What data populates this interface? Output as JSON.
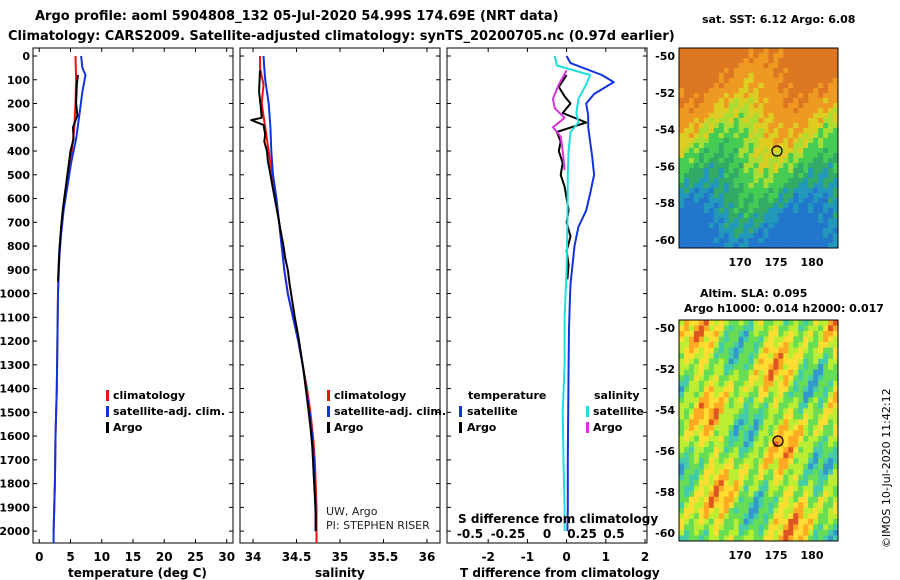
{
  "header": {
    "title_line1": "Argo profile: aoml 5904808_132 05-Jul-2020 54.99S 174.69E (NRT data)",
    "title_line2": "Climatology: CARS2009. Satellite-adjusted climatology: synTS_20200705.nc (0.97d earlier)"
  },
  "colors": {
    "climatology": "#ee1111",
    "satellite": "#1133dd",
    "argo": "#000000",
    "salinity_diff_sat": "#22dddd",
    "salinity_diff_argo": "#dd33dd"
  },
  "depth_axis": {
    "ticks": [
      0,
      100,
      200,
      300,
      400,
      500,
      600,
      700,
      800,
      900,
      1000,
      1100,
      1200,
      1300,
      1400,
      1500,
      1600,
      1700,
      1800,
      1900,
      2000
    ],
    "range": [
      0,
      2050
    ],
    "inverted": true
  },
  "credits": {
    "line1": "UW, Argo",
    "line2": "PI: STEPHEN RISER",
    "imos": "©IMOS 10-Jul-2020 11:42:12"
  },
  "chart_data": [
    {
      "id": "temperature",
      "type": "line",
      "xlabel": "temperature (deg C)",
      "xlim": [
        -1,
        31
      ],
      "xticks": [
        0,
        5,
        10,
        15,
        20,
        25,
        30
      ],
      "legend": [
        "climatology",
        "satellite-adj. clim.",
        "Argo"
      ],
      "series": [
        {
          "name": "climatology",
          "color": "#ee1111",
          "points": [
            [
              5.8,
              0
            ],
            [
              5.9,
              100
            ],
            [
              5.8,
              200
            ],
            [
              5.6,
              300
            ],
            [
              5.2,
              400
            ],
            [
              4.6,
              500
            ],
            [
              4.0,
              600
            ],
            [
              3.6,
              700
            ],
            [
              3.3,
              800
            ],
            [
              3.1,
              900
            ],
            [
              3.0,
              1000
            ],
            [
              2.9,
              1200
            ],
            [
              2.8,
              1400
            ],
            [
              2.6,
              1600
            ],
            [
              2.5,
              1800
            ],
            [
              2.3,
              2000
            ]
          ]
        },
        {
          "name": "satellite-adj. clim.",
          "color": "#1133dd",
          "points": [
            [
              6.7,
              0
            ],
            [
              6.9,
              50
            ],
            [
              7.4,
              80
            ],
            [
              6.9,
              150
            ],
            [
              6.4,
              250
            ],
            [
              5.9,
              350
            ],
            [
              5.1,
              450
            ],
            [
              4.5,
              550
            ],
            [
              3.9,
              650
            ],
            [
              3.5,
              750
            ],
            [
              3.2,
              850
            ],
            [
              3.0,
              1000
            ],
            [
              2.9,
              1200
            ],
            [
              2.8,
              1400
            ],
            [
              2.6,
              1600
            ],
            [
              2.5,
              1800
            ],
            [
              2.3,
              2000
            ],
            [
              2.3,
              2050
            ]
          ]
        },
        {
          "name": "Argo",
          "color": "#000000",
          "points": [
            [
              6.2,
              80
            ],
            [
              6.0,
              120
            ],
            [
              5.9,
              200
            ],
            [
              6.1,
              250
            ],
            [
              5.4,
              300
            ],
            [
              5.5,
              350
            ],
            [
              5.0,
              400
            ],
            [
              4.6,
              480
            ],
            [
              4.2,
              560
            ],
            [
              3.8,
              640
            ],
            [
              3.5,
              720
            ],
            [
              3.2,
              820
            ],
            [
              3.0,
              950
            ]
          ]
        }
      ]
    },
    {
      "id": "salinity",
      "type": "line",
      "xlabel": "salinity",
      "xlim": [
        33.85,
        36.15
      ],
      "xticks": [
        34,
        34.5,
        35,
        35.5,
        36
      ],
      "legend": [
        "climatology",
        "satellite-adj. clim.",
        "Argo"
      ],
      "series": [
        {
          "name": "climatology",
          "color": "#ee1111",
          "points": [
            [
              34.08,
              0
            ],
            [
              34.08,
              50
            ],
            [
              34.12,
              120
            ],
            [
              34.1,
              200
            ],
            [
              34.14,
              300
            ],
            [
              34.18,
              400
            ],
            [
              34.22,
              500
            ],
            [
              34.26,
              600
            ],
            [
              34.3,
              700
            ],
            [
              34.33,
              800
            ],
            [
              34.36,
              900
            ],
            [
              34.4,
              1000
            ],
            [
              34.46,
              1100
            ],
            [
              34.52,
              1200
            ],
            [
              34.57,
              1300
            ],
            [
              34.62,
              1400
            ],
            [
              34.66,
              1500
            ],
            [
              34.69,
              1600
            ],
            [
              34.71,
              1700
            ],
            [
              34.72,
              1800
            ],
            [
              34.73,
              1900
            ],
            [
              34.73,
              2000
            ],
            [
              34.73,
              2050
            ]
          ]
        },
        {
          "name": "satellite-adj. clim.",
          "color": "#1133dd",
          "points": [
            [
              34.12,
              0
            ],
            [
              34.13,
              50
            ],
            [
              34.14,
              100
            ],
            [
              34.18,
              200
            ],
            [
              34.2,
              300
            ],
            [
              34.21,
              400
            ],
            [
              34.23,
              500
            ],
            [
              34.27,
              600
            ],
            [
              34.3,
              700
            ],
            [
              34.33,
              800
            ],
            [
              34.36,
              900
            ],
            [
              34.4,
              1000
            ],
            [
              34.46,
              1100
            ],
            [
              34.52,
              1200
            ],
            [
              34.57,
              1300
            ],
            [
              34.61,
              1400
            ],
            [
              34.65,
              1500
            ],
            [
              34.68,
              1600
            ],
            [
              34.7,
              1700
            ],
            [
              34.71,
              1800
            ],
            [
              34.72,
              1900
            ],
            [
              34.72,
              2000
            ]
          ]
        },
        {
          "name": "Argo",
          "color": "#000000",
          "points": [
            [
              34.08,
              60
            ],
            [
              34.07,
              150
            ],
            [
              34.09,
              220
            ],
            [
              34.1,
              260
            ],
            [
              33.98,
              270
            ],
            [
              34.12,
              290
            ],
            [
              34.14,
              330
            ],
            [
              34.13,
              360
            ],
            [
              34.16,
              400
            ],
            [
              34.17,
              440
            ],
            [
              34.19,
              480
            ],
            [
              34.21,
              520
            ],
            [
              34.23,
              560
            ],
            [
              34.25,
              600
            ],
            [
              34.27,
              640
            ],
            [
              34.29,
              680
            ],
            [
              34.31,
              720
            ],
            [
              34.33,
              760
            ],
            [
              34.35,
              800
            ],
            [
              34.37,
              850
            ],
            [
              34.4,
              900
            ],
            [
              34.42,
              960
            ],
            [
              34.45,
              1030
            ],
            [
              34.48,
              1100
            ],
            [
              34.52,
              1180
            ],
            [
              34.55,
              1250
            ],
            [
              34.58,
              1320
            ],
            [
              34.6,
              1380
            ],
            [
              34.62,
              1440
            ],
            [
              34.64,
              1500
            ],
            [
              34.66,
              1560
            ],
            [
              34.68,
              1640
            ],
            [
              34.69,
              1700
            ],
            [
              34.7,
              1780
            ],
            [
              34.71,
              1850
            ],
            [
              34.72,
              1930
            ],
            [
              34.72,
              2000
            ]
          ]
        }
      ]
    },
    {
      "id": "difference",
      "type": "line",
      "xlabel": "T difference from climatology",
      "xlabel2": "S difference from climatology",
      "xlim": [
        -3.05,
        2.05
      ],
      "xticks": [
        -2,
        -1,
        0,
        1,
        2
      ],
      "xticks_s": [
        "-0.5",
        "-0.25",
        "0",
        "0.25",
        "0.5"
      ],
      "legend_headers": [
        "temperature",
        "salinity"
      ],
      "legend": [
        "satellite",
        "Argo",
        "satellite",
        "Argo"
      ],
      "series": [
        {
          "name": "T satellite",
          "color": "#1133dd",
          "points": [
            [
              0,
              0
            ],
            [
              0.1,
              30
            ],
            [
              0.9,
              80
            ],
            [
              1.2,
              110
            ],
            [
              0.7,
              160
            ],
            [
              0.5,
              200
            ],
            [
              0.55,
              250
            ],
            [
              0.55,
              300
            ],
            [
              0.6,
              360
            ],
            [
              0.65,
              420
            ],
            [
              0.7,
              500
            ],
            [
              0.6,
              580
            ],
            [
              0.5,
              650
            ],
            [
              0.3,
              720
            ],
            [
              0.2,
              800
            ],
            [
              0.15,
              880
            ],
            [
              0.1,
              960
            ],
            [
              0.08,
              1050
            ],
            [
              0.06,
              1150
            ],
            [
              0.05,
              1300
            ],
            [
              0.04,
              1500
            ],
            [
              0.03,
              1700
            ],
            [
              0.03,
              1900
            ],
            [
              0.02,
              2000
            ]
          ]
        },
        {
          "name": "T Argo",
          "color": "#000000",
          "points": [
            [
              0,
              80
            ],
            [
              -0.2,
              130
            ],
            [
              -0.05,
              170
            ],
            [
              0.1,
              200
            ],
            [
              -0.1,
              240
            ],
            [
              0.5,
              280
            ],
            [
              -0.25,
              320
            ],
            [
              -0.15,
              360
            ],
            [
              -0.2,
              400
            ],
            [
              -0.1,
              450
            ],
            [
              -0.15,
              500
            ],
            [
              -0.05,
              550
            ],
            [
              0.0,
              600
            ],
            [
              0.05,
              650
            ],
            [
              0.0,
              700
            ],
            [
              0.1,
              760
            ],
            [
              0.0,
              820
            ],
            [
              0.05,
              880
            ],
            [
              0.02,
              940
            ]
          ]
        },
        {
          "name": "S satellite",
          "color": "#22dddd",
          "points": [
            [
              -0.3,
              0
            ],
            [
              -0.25,
              40
            ],
            [
              0.6,
              80
            ],
            [
              0.5,
              120
            ],
            [
              0.3,
              180
            ],
            [
              0.25,
              240
            ],
            [
              0.3,
              280
            ],
            [
              0.1,
              320
            ],
            [
              0.05,
              400
            ],
            [
              0.03,
              500
            ],
            [
              0.02,
              700
            ],
            [
              0.0,
              900
            ],
            [
              -0.05,
              1100
            ],
            [
              -0.05,
              1300
            ],
            [
              -0.1,
              1500
            ],
            [
              -0.08,
              1700
            ],
            [
              -0.05,
              1900
            ],
            [
              -0.05,
              2000
            ]
          ]
        },
        {
          "name": "S Argo",
          "color": "#dd33dd",
          "points": [
            [
              0.0,
              60
            ],
            [
              -0.2,
              120
            ],
            [
              -0.35,
              180
            ],
            [
              -0.3,
              220
            ],
            [
              -0.05,
              260
            ],
            [
              -0.35,
              300
            ],
            [
              -0.15,
              340
            ],
            [
              -0.1,
              400
            ],
            [
              -0.05,
              480
            ]
          ]
        }
      ]
    }
  ],
  "maps": {
    "sst": {
      "title": "sat. SST: 6.12 Argo: 6.08",
      "lon_ticks": [
        "170",
        "175",
        "180"
      ],
      "lat_ticks": [
        "-50",
        "-52",
        "-54",
        "-56",
        "-58",
        "-60"
      ]
    },
    "sla": {
      "title_line1": "Altim. SLA: 0.095",
      "title_line2": "Argo h1000: 0.014 h2000: 0.017",
      "lon_ticks": [
        "170",
        "175",
        "180"
      ],
      "lat_ticks": [
        "-50",
        "-52",
        "-54",
        "-56",
        "-58",
        "-60"
      ]
    }
  }
}
